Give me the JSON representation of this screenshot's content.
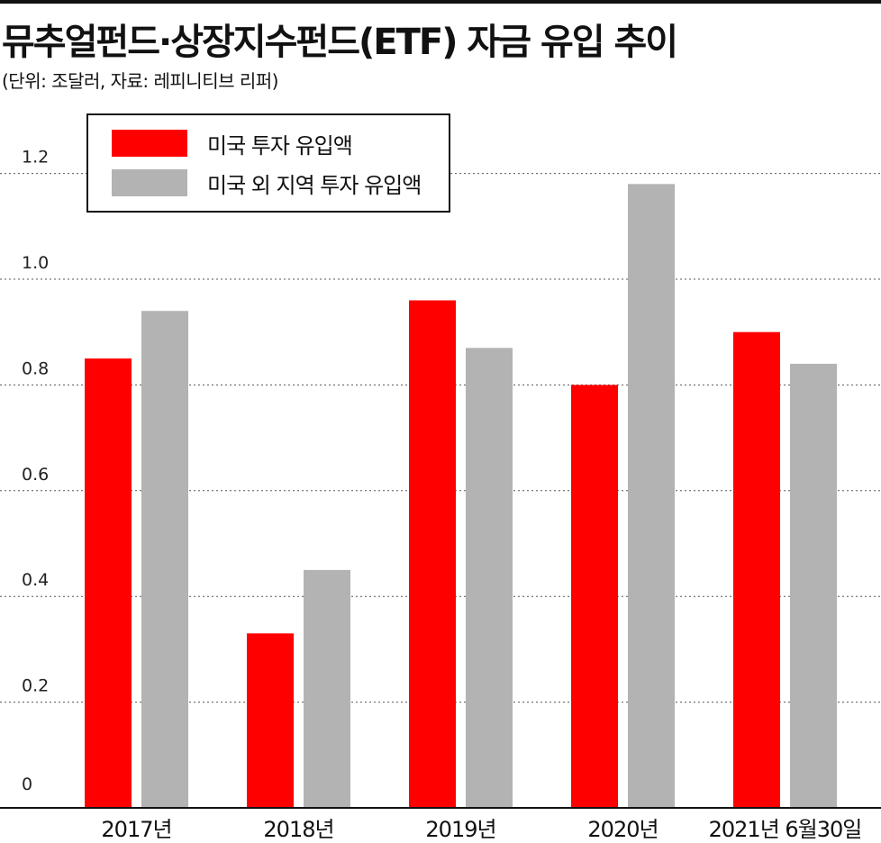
{
  "header": {
    "title": "뮤추얼펀드·상장지수펀드(ETF) 자금 유입 추이",
    "subtitle": "(단위: 조달러, 자료: 레피니티브 리퍼)"
  },
  "colors": {
    "us": "#ff0000",
    "non_us": "#b3b3b3",
    "grid": "#555555",
    "axis": "#111111"
  },
  "chart_data": {
    "type": "bar",
    "title": "뮤추얼펀드·상장지수펀드(ETF) 자금 유입 추이",
    "unit": "조달러",
    "categories": [
      "2017년",
      "2018년",
      "2019년",
      "2020년",
      "2021년 6월30일"
    ],
    "series": [
      {
        "name": "미국 투자 유입액",
        "values": [
          0.85,
          0.33,
          0.96,
          0.8,
          0.9
        ]
      },
      {
        "name": "미국 외 지역 투자 유입액",
        "values": [
          0.94,
          0.45,
          0.87,
          1.18,
          0.84
        ]
      }
    ],
    "yticks": [
      "0",
      "0.2",
      "0.4",
      "0.6",
      "0.8",
      "1.0",
      "1.2"
    ],
    "ytick_values": [
      0,
      0.2,
      0.4,
      0.6,
      0.8,
      1.0,
      1.2
    ],
    "ylim": [
      0,
      1.3
    ],
    "grid": true,
    "legend_position": "top-left"
  }
}
